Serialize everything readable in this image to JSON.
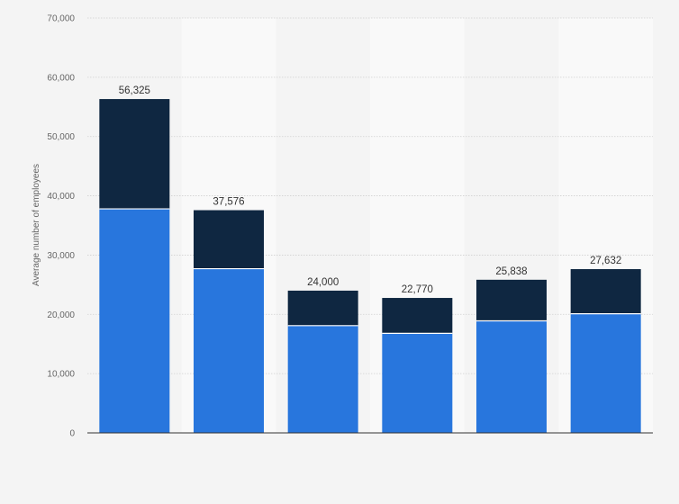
{
  "chart_data": {
    "type": "bar",
    "stacked": true,
    "categories": [
      "",
      "",
      "",
      "",
      "",
      ""
    ],
    "series": [
      {
        "values": [
          37800,
          27700,
          18100,
          16800,
          18900,
          20100
        ],
        "color": "#2876dd"
      },
      {
        "values": [
          18525,
          9876,
          5900,
          5970,
          6938,
          7532
        ],
        "color": "#0f2741"
      }
    ],
    "totals": [
      56325,
      37576,
      24000,
      22770,
      25838,
      27632
    ],
    "total_labels": [
      "56,325",
      "37,576",
      "24,000",
      "22,770",
      "25,838",
      "27,632"
    ],
    "ylabel": "Average number of employees",
    "ylim": [
      0,
      70000
    ],
    "yticks": [
      0,
      10000,
      20000,
      30000,
      40000,
      50000,
      60000,
      70000
    ],
    "ytick_labels": [
      "0",
      "10,000",
      "20,000",
      "30,000",
      "40,000",
      "50,000",
      "60,000",
      "70,000"
    ],
    "grid": true,
    "legend": "none"
  },
  "colors": {
    "background": "#f4f4f4",
    "band": "#f9f9f9",
    "grid": "#d0d0d0",
    "axis": "#333333"
  }
}
